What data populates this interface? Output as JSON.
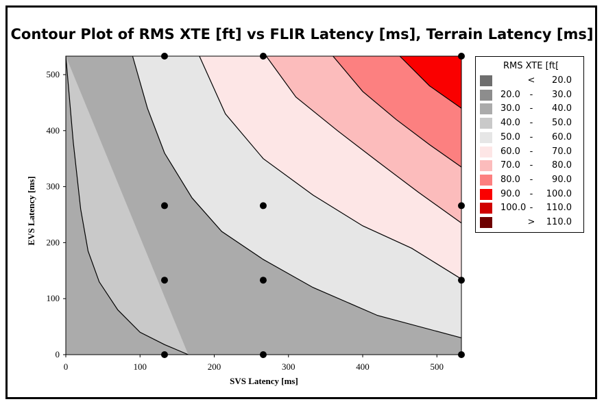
{
  "chart_data": {
    "type": "contour",
    "title": "Contour Plot of RMS XTE [ft] vs FLIR Latency [ms], Terrain Latency [ms]",
    "xlabel": "SVS Latency [ms]",
    "ylabel": "EVS Latency [ms]",
    "xlim": [
      0,
      533
    ],
    "ylim": [
      0,
      533
    ],
    "x_ticks": [
      0,
      100,
      200,
      300,
      400,
      500
    ],
    "y_ticks": [
      0,
      100,
      200,
      300,
      400,
      500
    ],
    "legend": {
      "title": "RMS XTE [ft[",
      "position": "right",
      "entries": [
        {
          "lo": "",
          "sep": "<",
          "hi": "20.0",
          "color": "#6e6e6e"
        },
        {
          "lo": "20.0",
          "sep": "-",
          "hi": "30.0",
          "color": "#8d8d8d"
        },
        {
          "lo": "30.0",
          "sep": "-",
          "hi": "40.0",
          "color": "#ababab"
        },
        {
          "lo": "40.0",
          "sep": "-",
          "hi": "50.0",
          "color": "#c9c9c9"
        },
        {
          "lo": "50.0",
          "sep": "-",
          "hi": "60.0",
          "color": "#e6e6e6"
        },
        {
          "lo": "60.0",
          "sep": "-",
          "hi": "70.0",
          "color": "#fde6e6"
        },
        {
          "lo": "70.0",
          "sep": "-",
          "hi": "80.0",
          "color": "#fcbcbc"
        },
        {
          "lo": "80.0",
          "sep": "-",
          "hi": "90.0",
          "color": "#fc8080"
        },
        {
          "lo": "90.0",
          "sep": "-",
          "hi": "100.0",
          "color": "#fa0000"
        },
        {
          "lo": "100.0",
          "sep": "-",
          "hi": "110.0",
          "color": "#d00000"
        },
        {
          "lo": "",
          "sep": ">",
          "hi": "110.0",
          "color": "#6e0000"
        }
      ]
    },
    "contour_lines": [
      {
        "level": 40,
        "points": [
          [
            0,
            533
          ],
          [
            10,
            380
          ],
          [
            20,
            260
          ],
          [
            30,
            185
          ],
          [
            45,
            130
          ],
          [
            70,
            80
          ],
          [
            100,
            40
          ],
          [
            133,
            18
          ],
          [
            165,
            0
          ]
        ]
      },
      {
        "level": 50,
        "points": [
          [
            90,
            533
          ],
          [
            110,
            440
          ],
          [
            133,
            360
          ],
          [
            170,
            280
          ],
          [
            210,
            220
          ],
          [
            266,
            170
          ],
          [
            333,
            120
          ],
          [
            420,
            70
          ],
          [
            533,
            30
          ]
        ]
      },
      {
        "level": 60,
        "points": [
          [
            180,
            533
          ],
          [
            215,
            430
          ],
          [
            266,
            350
          ],
          [
            333,
            285
          ],
          [
            400,
            230
          ],
          [
            466,
            190
          ],
          [
            533,
            135
          ]
        ]
      },
      {
        "level": 70,
        "points": [
          [
            270,
            533
          ],
          [
            310,
            460
          ],
          [
            366,
            400
          ],
          [
            420,
            345
          ],
          [
            475,
            290
          ],
          [
            533,
            235
          ]
        ]
      },
      {
        "level": 80,
        "points": [
          [
            360,
            533
          ],
          [
            400,
            470
          ],
          [
            445,
            420
          ],
          [
            490,
            375
          ],
          [
            533,
            335
          ]
        ]
      },
      {
        "level": 90,
        "points": [
          [
            450,
            533
          ],
          [
            490,
            480
          ],
          [
            533,
            440
          ]
        ]
      }
    ],
    "points": [
      [
        133,
        533
      ],
      [
        266,
        533
      ],
      [
        533,
        533
      ],
      [
        133,
        266
      ],
      [
        266,
        266
      ],
      [
        533,
        266
      ],
      [
        133,
        133
      ],
      [
        266,
        133
      ],
      [
        533,
        133
      ],
      [
        133,
        0
      ],
      [
        266,
        0
      ],
      [
        533,
        0
      ]
    ]
  }
}
